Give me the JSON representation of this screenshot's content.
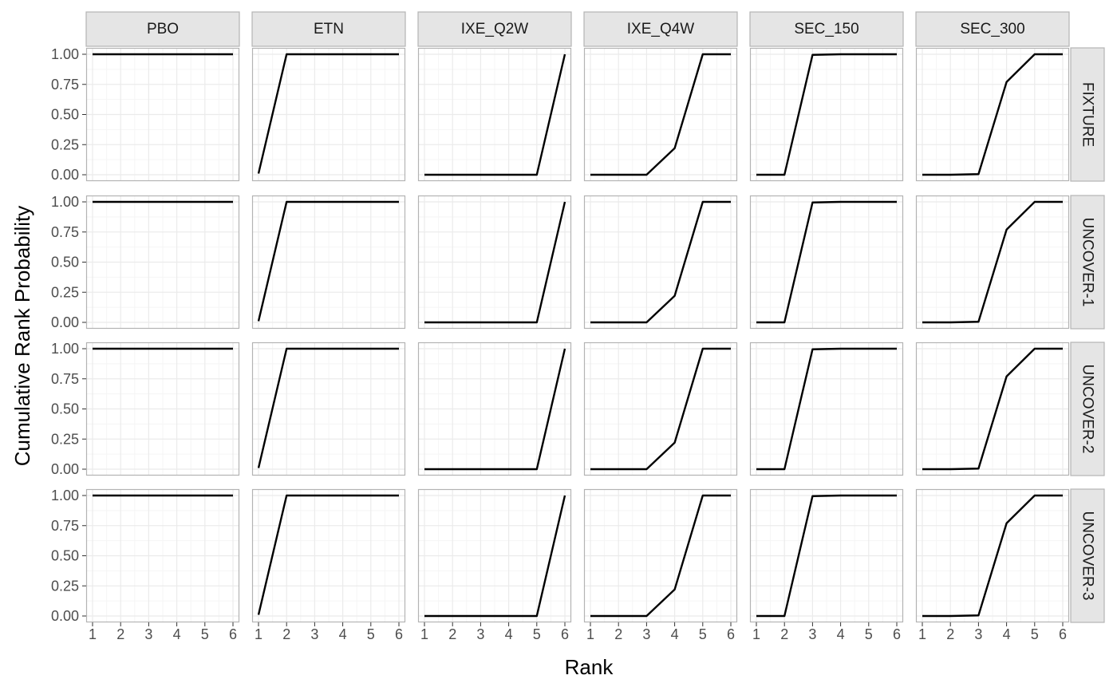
{
  "chart_data": {
    "type": "line",
    "facet_columns": [
      "PBO",
      "ETN",
      "IXE_Q2W",
      "IXE_Q4W",
      "SEC_150",
      "SEC_300"
    ],
    "facet_rows": [
      "FIXTURE",
      "UNCOVER-1",
      "UNCOVER-2",
      "UNCOVER-3"
    ],
    "x": [
      1,
      2,
      3,
      4,
      5,
      6
    ],
    "x_ticks": [
      "1",
      "2",
      "3",
      "4",
      "5",
      "6"
    ],
    "y_ticks": [
      "0.00",
      "0.25",
      "0.50",
      "0.75",
      "1.00"
    ],
    "xlim": [
      1,
      6
    ],
    "ylim": [
      0,
      1
    ],
    "xlabel": "Rank",
    "ylabel": "Cumulative Rank Probability",
    "grid": true,
    "series_by_column": {
      "PBO": [
        1.0,
        1.0,
        1.0,
        1.0,
        1.0,
        1.0
      ],
      "ETN": [
        0.01,
        1.0,
        1.0,
        1.0,
        1.0,
        1.0
      ],
      "IXE_Q2W": [
        0.0,
        0.0,
        0.0,
        0.0,
        0.0,
        1.0
      ],
      "IXE_Q4W": [
        0.0,
        0.0,
        0.0,
        0.22,
        1.0,
        1.0
      ],
      "SEC_150": [
        0.0,
        0.0,
        0.995,
        1.0,
        1.0,
        1.0
      ],
      "SEC_300": [
        0.0,
        0.0,
        0.005,
        0.77,
        1.0,
        1.0
      ]
    },
    "colors": {
      "line": "#000000",
      "panel_border": "#b3b3b3",
      "grid_major": "#ebebeb",
      "grid_minor": "#f5f5f5",
      "strip_fill": "#e5e5e5",
      "tick_text": "#4d4d4d"
    }
  }
}
